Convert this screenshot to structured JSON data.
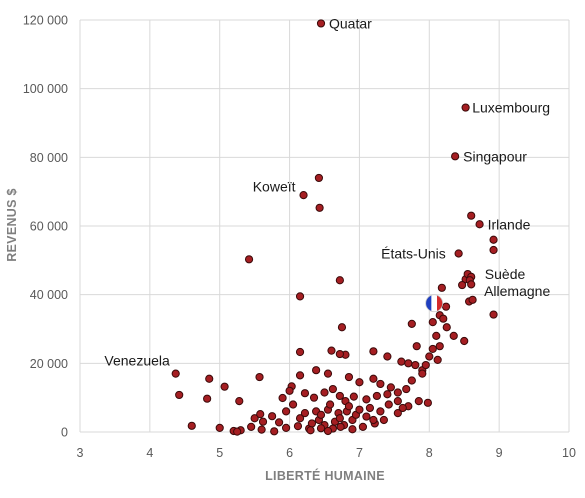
{
  "chart_data": {
    "type": "scatter",
    "title": "",
    "xlabel": "LIBERTÉ HUMAINE",
    "ylabel": "REVENUS $",
    "xlim": [
      3,
      10
    ],
    "ylim": [
      0,
      120000
    ],
    "xticks": [
      3,
      4,
      5,
      6,
      7,
      8,
      9,
      10
    ],
    "xtick_labels": [
      "3",
      "4",
      "5",
      "6",
      "7",
      "8",
      "9",
      "10"
    ],
    "yticks": [
      0,
      20000,
      40000,
      60000,
      80000,
      100000,
      120000
    ],
    "ytick_labels": [
      "0",
      "20 000",
      "40 000",
      "60 000",
      "80 000",
      "100 000",
      "120 000"
    ],
    "grid": true,
    "legend": "none",
    "marker_color": "#a51e22",
    "marker_edge_color": "#3a0a0a",
    "annotations": [
      {
        "text": "Quatar",
        "x": 6.45,
        "y": 119000,
        "anchor": "start"
      },
      {
        "text": "Luxembourg",
        "x": 8.5,
        "y": 94500,
        "anchor": "start"
      },
      {
        "text": "Singapour",
        "x": 8.37,
        "y": 80300,
        "anchor": "start"
      },
      {
        "text": "Koweït",
        "x": 6.2,
        "y": 71500,
        "anchor": "end"
      },
      {
        "text": "Irlande",
        "x": 8.72,
        "y": 60500,
        "anchor": "start"
      },
      {
        "text": "États-Unis",
        "x": 8.35,
        "y": 52000,
        "anchor": "end"
      },
      {
        "text": "Suède",
        "x": 8.68,
        "y": 46000,
        "anchor": "start"
      },
      {
        "text": "Allemagne",
        "x": 8.67,
        "y": 41000,
        "anchor": "start"
      },
      {
        "text": "Venezuela",
        "x": 4.4,
        "y": 20800,
        "anchor": "end"
      }
    ],
    "highlight": {
      "name": "France",
      "x": 8.07,
      "y": 37500,
      "colors": [
        "#1f3fbf",
        "#ffffff",
        "#d42a2a"
      ]
    },
    "points": [
      [
        6.45,
        119000
      ],
      [
        8.52,
        94500
      ],
      [
        8.37,
        80300
      ],
      [
        6.42,
        74000
      ],
      [
        6.2,
        69000
      ],
      [
        6.43,
        65300
      ],
      [
        8.6,
        63000
      ],
      [
        8.72,
        60500
      ],
      [
        8.92,
        56000
      ],
      [
        8.92,
        53000
      ],
      [
        8.42,
        52000
      ],
      [
        5.42,
        50300
      ],
      [
        8.52,
        44500
      ],
      [
        8.55,
        46000
      ],
      [
        8.6,
        45200
      ],
      [
        8.58,
        44200
      ],
      [
        8.6,
        43000
      ],
      [
        8.47,
        42800
      ],
      [
        8.18,
        42000
      ],
      [
        6.72,
        44200
      ],
      [
        6.15,
        39500
      ],
      [
        8.57,
        38000
      ],
      [
        8.62,
        38500
      ],
      [
        8.24,
        36500
      ],
      [
        8.15,
        34000
      ],
      [
        8.92,
        34200
      ],
      [
        8.05,
        32000
      ],
      [
        6.75,
        30500
      ],
      [
        7.75,
        31500
      ],
      [
        8.2,
        33000
      ],
      [
        8.25,
        30500
      ],
      [
        8.1,
        28000
      ],
      [
        8.35,
        28000
      ],
      [
        8.5,
        26500
      ],
      [
        8.15,
        25000
      ],
      [
        7.82,
        25000
      ],
      [
        8.05,
        24200
      ],
      [
        7.2,
        23500
      ],
      [
        6.15,
        23300
      ],
      [
        6.6,
        23700
      ],
      [
        6.8,
        22500
      ],
      [
        6.72,
        22700
      ],
      [
        7.4,
        22000
      ],
      [
        7.6,
        20500
      ],
      [
        7.7,
        20000
      ],
      [
        7.8,
        19500
      ],
      [
        7.9,
        18000
      ],
      [
        8.0,
        22000
      ],
      [
        7.95,
        19500
      ],
      [
        8.12,
        21000
      ],
      [
        4.37,
        17000
      ],
      [
        4.85,
        15500
      ],
      [
        5.07,
        13200
      ],
      [
        5.57,
        16000
      ],
      [
        6.03,
        13300
      ],
      [
        6.15,
        16500
      ],
      [
        6.38,
        18000
      ],
      [
        6.55,
        17000
      ],
      [
        6.85,
        16000
      ],
      [
        7.0,
        14500
      ],
      [
        7.2,
        15500
      ],
      [
        7.3,
        14000
      ],
      [
        7.45,
        13000
      ],
      [
        7.55,
        11500
      ],
      [
        7.67,
        12500
      ],
      [
        7.75,
        15000
      ],
      [
        7.9,
        17000
      ],
      [
        4.42,
        10800
      ],
      [
        4.82,
        9700
      ],
      [
        5.28,
        9000
      ],
      [
        5.9,
        9900
      ],
      [
        6.0,
        12000
      ],
      [
        6.22,
        11300
      ],
      [
        6.35,
        10000
      ],
      [
        6.5,
        11500
      ],
      [
        6.62,
        12500
      ],
      [
        6.72,
        10500
      ],
      [
        6.8,
        9000
      ],
      [
        6.92,
        10300
      ],
      [
        7.1,
        9500
      ],
      [
        7.25,
        10500
      ],
      [
        7.4,
        11000
      ],
      [
        7.55,
        9000
      ],
      [
        7.7,
        7500
      ],
      [
        7.85,
        9000
      ],
      [
        7.98,
        8500
      ],
      [
        4.6,
        1800
      ],
      [
        5.0,
        1200
      ],
      [
        5.2,
        300
      ],
      [
        5.3,
        500
      ],
      [
        5.45,
        1500
      ],
      [
        5.5,
        4000
      ],
      [
        5.58,
        5200
      ],
      [
        5.62,
        3000
      ],
      [
        5.75,
        4600
      ],
      [
        5.85,
        2800
      ],
      [
        5.95,
        6000
      ],
      [
        6.05,
        8000
      ],
      [
        6.15,
        4000
      ],
      [
        6.22,
        5500
      ],
      [
        6.28,
        1000
      ],
      [
        6.32,
        2500
      ],
      [
        6.38,
        6000
      ],
      [
        6.42,
        3500
      ],
      [
        6.45,
        5000
      ],
      [
        6.5,
        2000
      ],
      [
        6.55,
        6500
      ],
      [
        6.58,
        8000
      ],
      [
        6.62,
        1000
      ],
      [
        6.65,
        3000
      ],
      [
        6.7,
        5500
      ],
      [
        6.72,
        4000
      ],
      [
        6.78,
        2000
      ],
      [
        6.82,
        6000
      ],
      [
        6.85,
        7500
      ],
      [
        6.9,
        3500
      ],
      [
        6.95,
        5000
      ],
      [
        7.0,
        6500
      ],
      [
        7.05,
        1500
      ],
      [
        7.1,
        4500
      ],
      [
        7.15,
        7000
      ],
      [
        7.22,
        2500
      ],
      [
        7.3,
        6000
      ],
      [
        7.35,
        3500
      ],
      [
        7.42,
        8000
      ],
      [
        7.55,
        5500
      ],
      [
        7.62,
        7000
      ],
      [
        5.25,
        100
      ],
      [
        5.6,
        700
      ],
      [
        5.95,
        1200
      ],
      [
        6.3,
        500
      ],
      [
        6.55,
        300
      ],
      [
        6.73,
        1500
      ],
      [
        6.9,
        800
      ],
      [
        5.78,
        200
      ],
      [
        6.12,
        1700
      ],
      [
        6.45,
        1100
      ],
      [
        7.2,
        3500
      ]
    ]
  }
}
